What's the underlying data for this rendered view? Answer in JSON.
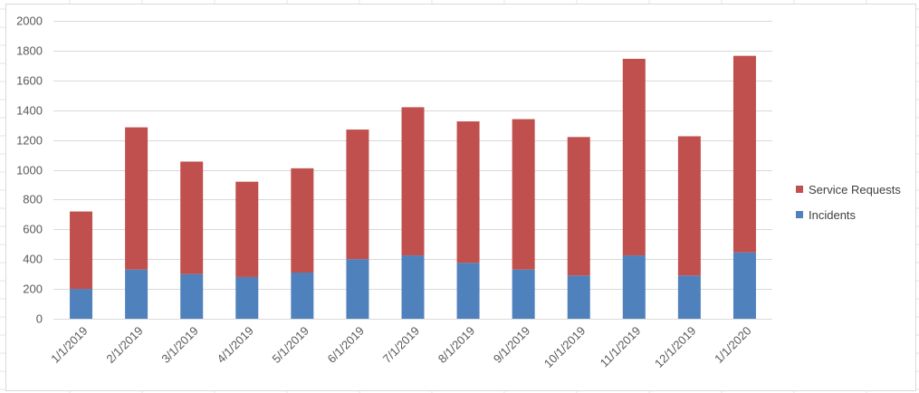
{
  "chart_data": {
    "type": "bar",
    "stacked": true,
    "categories": [
      "1/1/2019",
      "2/1/2019",
      "3/1/2019",
      "4/1/2019",
      "5/1/2019",
      "6/1/2019",
      "7/1/2019",
      "8/1/2019",
      "9/1/2019",
      "10/1/2019",
      "11/1/2019",
      "12/1/2019",
      "1/1/2020"
    ],
    "series": [
      {
        "name": "Incidents",
        "color": "#4F81BD",
        "values": [
          200,
          330,
          300,
          280,
          310,
          400,
          425,
          375,
          330,
          290,
          425,
          290,
          445
        ]
      },
      {
        "name": "Service Requests",
        "color": "#C0504D",
        "values": [
          520,
          955,
          755,
          640,
          700,
          870,
          995,
          950,
          1010,
          930,
          1320,
          935,
          1320
        ]
      }
    ],
    "yticks": [
      "0",
      "200",
      "400",
      "600",
      "800",
      "1000",
      "1200",
      "1400",
      "1600",
      "1800",
      "2000"
    ],
    "ylim": [
      0,
      2000
    ],
    "grid": true,
    "legend_position": "right",
    "title": "",
    "xlabel": "",
    "ylabel": ""
  },
  "legend": {
    "items": [
      {
        "label": "Service Requests",
        "color": "#C0504D"
      },
      {
        "label": "Incidents",
        "color": "#4F81BD"
      }
    ]
  }
}
